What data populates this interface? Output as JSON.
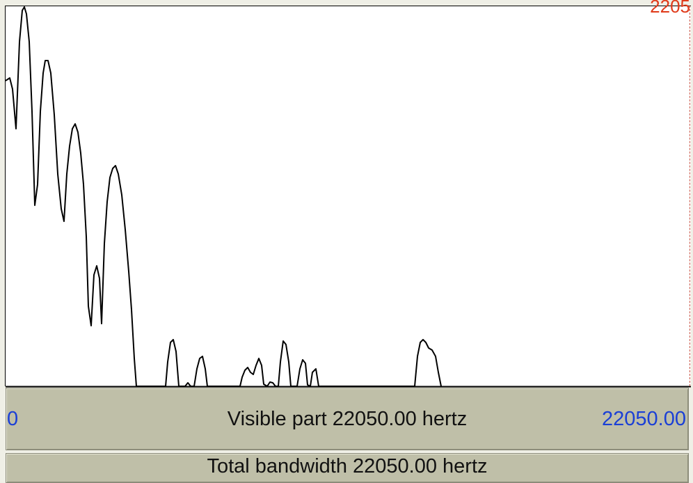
{
  "top_right_label": "2205",
  "spectrum": {
    "visible_part_label": "Visible part 22050.00 hertz",
    "range_start": "0",
    "range_end": "22050.00",
    "total_bandwidth_label": "Total bandwidth 22050.00 hertz"
  },
  "colors": {
    "accent_blue": "#1a3fd6",
    "accent_red": "#e03a1a",
    "bar_background": "#bfbfa8",
    "plot_background": "#ffffff"
  }
}
